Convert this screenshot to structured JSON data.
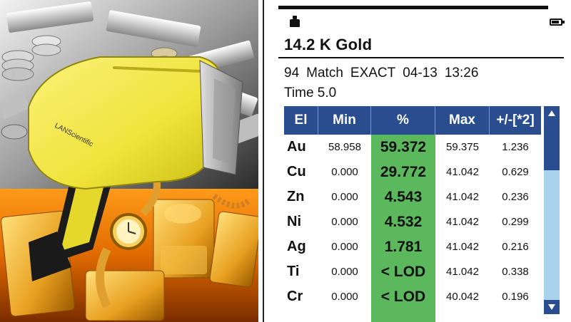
{
  "photo": {
    "brand_logo": "LANScientific",
    "icon_names": [
      "xrf-analyzer-gun",
      "silver-bars-coins",
      "gold-bars-watch"
    ]
  },
  "screen": {
    "title": "14.2 K Gold",
    "match_number": "94",
    "match_label": "Match",
    "match_mode": "EXACT",
    "date": "04-13",
    "time_of_day": "13:26",
    "time_line": "Time 5.0",
    "table": {
      "headers": [
        "El",
        "Min",
        "%",
        "Max",
        "+/-[*2]"
      ],
      "rows": [
        {
          "el": "Au",
          "min": "58.958",
          "pct": "59.372",
          "max": "59.375",
          "err": "1.236"
        },
        {
          "el": "Cu",
          "min": "0.000",
          "pct": "29.772",
          "max": "41.042",
          "err": "0.629"
        },
        {
          "el": "Zn",
          "min": "0.000",
          "pct": "4.543",
          "max": "41.042",
          "err": "0.236"
        },
        {
          "el": "Ni",
          "min": "0.000",
          "pct": "4.532",
          "max": "41.042",
          "err": "0.299"
        },
        {
          "el": "Ag",
          "min": "0.000",
          "pct": "1.781",
          "max": "41.042",
          "err": "0.216"
        },
        {
          "el": "Ti",
          "min": "0.000",
          "pct": "< LOD",
          "max": "41.042",
          "err": "0.338"
        },
        {
          "el": "Cr",
          "min": "0.000",
          "pct": "< LOD",
          "max": "40.042",
          "err": "0.196"
        }
      ]
    },
    "colors": {
      "header_bg": "#2a4d8f",
      "percent_column": "#5cb85c",
      "scroll_track": "#a9d3ec"
    },
    "status_icons": [
      "weight-icon",
      "battery-icon"
    ]
  }
}
